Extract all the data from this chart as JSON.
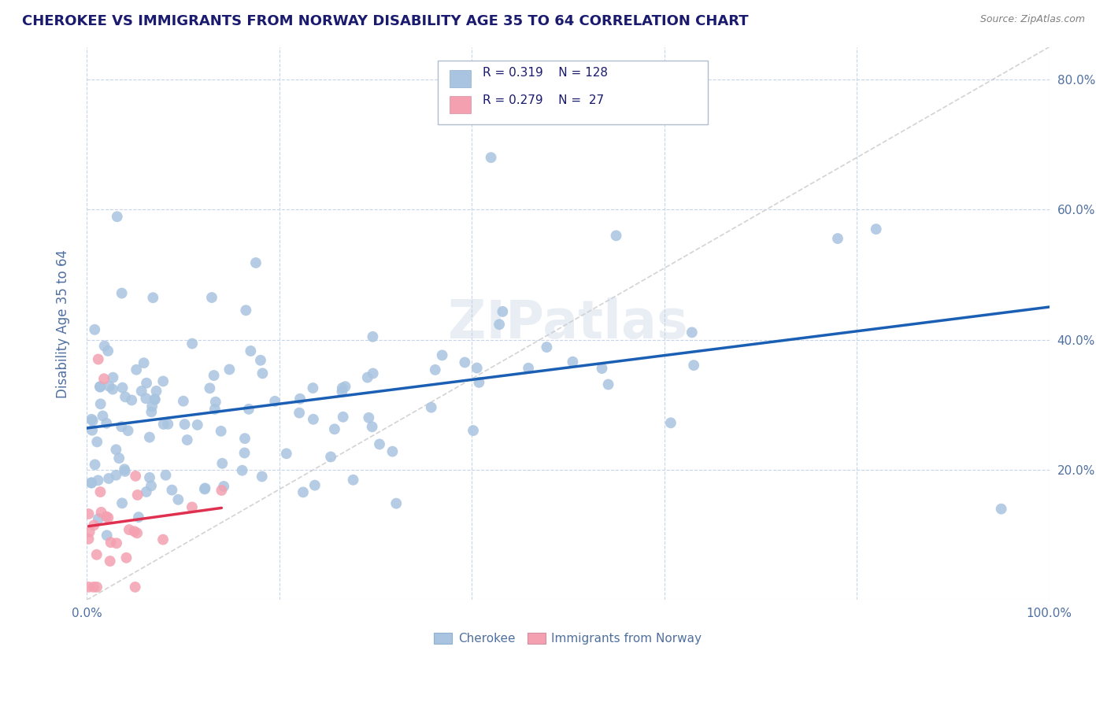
{
  "title": "CHEROKEE VS IMMIGRANTS FROM NORWAY DISABILITY AGE 35 TO 64 CORRELATION CHART",
  "source": "Source: ZipAtlas.com",
  "ylabel": "Disability Age 35 to 64",
  "xlim": [
    0,
    1.0
  ],
  "ylim": [
    0,
    0.85
  ],
  "cherokee_R": 0.319,
  "cherokee_N": 128,
  "norway_R": 0.279,
  "norway_N": 27,
  "cherokee_color": "#a8c4e0",
  "norway_color": "#f4a0b0",
  "cherokee_line_color": "#1a5fb4",
  "norway_line_color": "#e03050",
  "diagonal_color": "#c8c8c8",
  "background_color": "#ffffff",
  "grid_color": "#c8d4e8",
  "title_color": "#1a1a6e",
  "axis_label_color": "#5070a0",
  "tick_color": "#5070a0",
  "legend_text_color": "#1a1a6e",
  "source_color": "#808080"
}
